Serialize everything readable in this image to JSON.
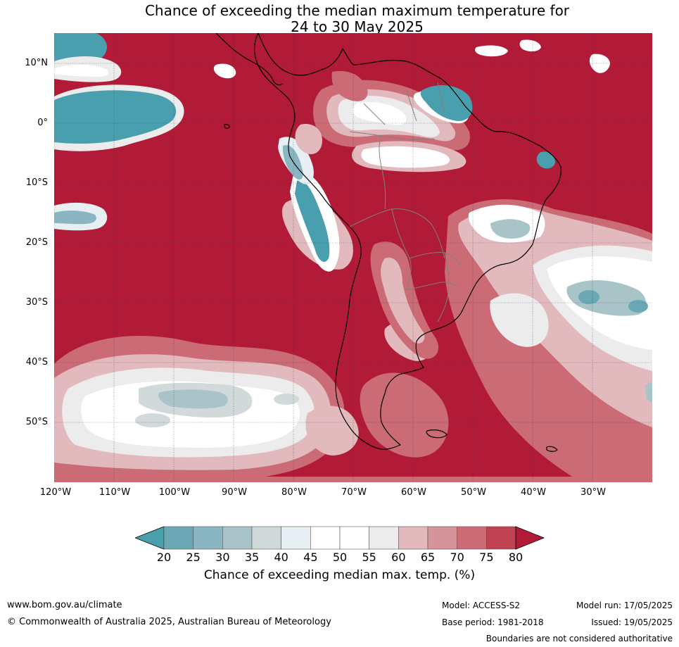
{
  "title": {
    "line1": "Chance of exceeding the median maximum temperature for",
    "line2": "24 to 30 May 2025"
  },
  "map": {
    "lat_labels": [
      "10°N",
      "0°",
      "10°S",
      "20°S",
      "30°S",
      "40°S",
      "50°S"
    ],
    "lon_labels": [
      "120°W",
      "110°W",
      "100°W",
      "90°W",
      "80°W",
      "70°W",
      "60°W",
      "50°W",
      "40°W",
      "30°W"
    ],
    "colors": {
      "above_80": "#b11b37",
      "s75_80": "#c0414f",
      "s70_75": "#cb6b76",
      "s65_70": "#d5939a",
      "s60_65": "#e2b9bd",
      "s55_60": "#ececec",
      "s45_55": "#ffffff",
      "s40_45": "#e8eff2",
      "s35_40": "#d1d9db",
      "s30_35": "#a9c4c9",
      "s25_30": "#8ab6c2",
      "s20_25": "#6ba8b6",
      "below_20": "#4a9faf",
      "coast": "#000000",
      "border": "#808080"
    }
  },
  "colorbar": {
    "ticks": [
      "20",
      "25",
      "30",
      "35",
      "40",
      "45",
      "50",
      "55",
      "60",
      "65",
      "70",
      "75",
      "80"
    ],
    "colors": [
      "#6ba8b6",
      "#8ab6c2",
      "#a9c4c9",
      "#d1d9db",
      "#e8eff2",
      "#ffffff",
      "#ffffff",
      "#ececec",
      "#e2b9bd",
      "#d5939a",
      "#cb6b76",
      "#c0414f"
    ],
    "low_color": "#4a9faf",
    "high_color": "#b11b37",
    "label": "Chance of exceeding median max. temp. (%)"
  },
  "footer": {
    "website": "www.bom.gov.au/climate",
    "copyright": "© Commonwealth of Australia 2025, Australian Bureau of Meteorology",
    "model": "Model: ACCESS-S2",
    "base_period": "Base period: 1981-2018",
    "model_run": "Model run: 17/05/2025",
    "issued": "Issued: 19/05/2025",
    "disclaimer": "Boundaries are not considered authoritative"
  }
}
